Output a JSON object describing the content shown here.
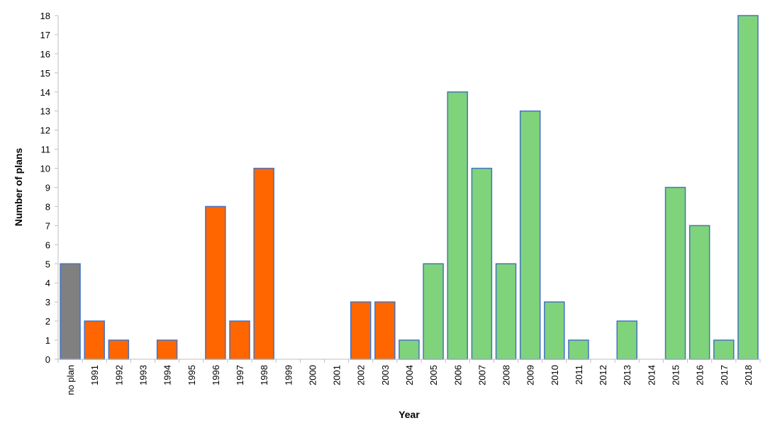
{
  "chart_data": {
    "type": "bar",
    "title": "",
    "xlabel": "Year",
    "ylabel": "Number of plans",
    "ylim": [
      0,
      18
    ],
    "ytick_step": 1,
    "grid": false,
    "legend": "none",
    "categories": [
      "no plan",
      "1991",
      "1992",
      "1993",
      "1994",
      "1995",
      "1996",
      "1997",
      "1998",
      "1999",
      "2000",
      "2001",
      "2002",
      "2003",
      "2004",
      "2005",
      "2006",
      "2007",
      "2008",
      "2009",
      "2010",
      "2011",
      "2012",
      "2013",
      "2014",
      "2015",
      "2016",
      "2017",
      "2018"
    ],
    "values": [
      5,
      2,
      1,
      0,
      1,
      0,
      8,
      2,
      10,
      0,
      0,
      0,
      3,
      3,
      1,
      5,
      14,
      10,
      5,
      13,
      3,
      1,
      0,
      2,
      0,
      9,
      7,
      1,
      18
    ],
    "bar_colors": [
      "#808080",
      "#FF6600",
      "#FF6600",
      "#FF6600",
      "#FF6600",
      "#FF6600",
      "#FF6600",
      "#FF6600",
      "#FF6600",
      "#FF6600",
      "#FF6600",
      "#FF6600",
      "#FF6600",
      "#FF6600",
      "#7FD37A",
      "#7FD37A",
      "#7FD37A",
      "#7FD37A",
      "#7FD37A",
      "#7FD37A",
      "#7FD37A",
      "#7FD37A",
      "#7FD37A",
      "#7FD37A",
      "#7FD37A",
      "#7FD37A",
      "#7FD37A",
      "#7FD37A",
      "#7FD37A"
    ],
    "bar_outline_color": "#4472C4",
    "axis_color": "#BFBFBF"
  }
}
